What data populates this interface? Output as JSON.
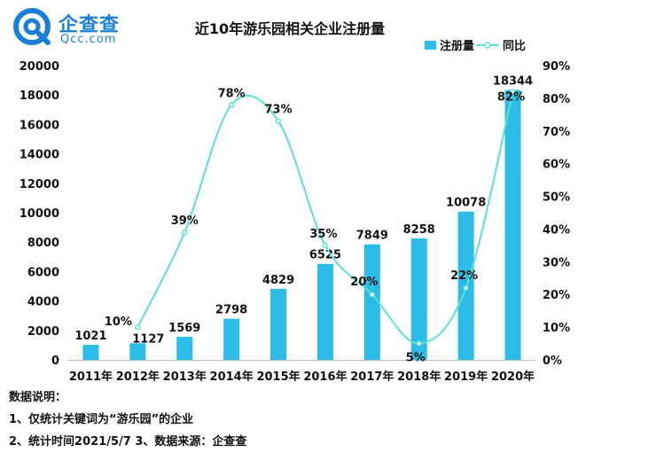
{
  "brand": {
    "name_cn": "企查查",
    "name_en": "Qcc.com",
    "colors": {
      "primary": "#1a7fd6"
    }
  },
  "chart_data": {
    "type": "bar",
    "title": "近10年游乐园相关企业注册量",
    "categories": [
      "2011年",
      "2012年",
      "2013年",
      "2014年",
      "2015年",
      "2016年",
      "2017年",
      "2018年",
      "2019年",
      "2020年"
    ],
    "series": [
      {
        "name": "注册量",
        "type": "bar",
        "axis": "left",
        "color": "#2bbde8",
        "values": [
          1021,
          1127,
          1569,
          2798,
          4829,
          6525,
          7849,
          8258,
          10078,
          18344
        ],
        "labels": [
          "1021",
          "1127",
          "1569",
          "2798",
          "4829",
          "6525",
          "7849",
          "8258",
          "10078",
          "18344"
        ]
      },
      {
        "name": "同比",
        "type": "line",
        "axis": "right",
        "color": "#5ce0cf",
        "values": [
          null,
          10,
          39,
          78,
          73,
          35,
          20,
          5,
          22,
          82
        ],
        "labels": [
          "",
          "10%",
          "39%",
          "78%",
          "73%",
          "35%",
          "20%",
          "5%",
          "22%",
          "82%"
        ]
      }
    ],
    "y_left": {
      "min": 0,
      "max": 20000,
      "ticks": [
        "0",
        "2000",
        "4000",
        "6000",
        "8000",
        "10000",
        "12000",
        "14000",
        "16000",
        "18000",
        "20000"
      ]
    },
    "y_right": {
      "min": 0,
      "max": 90,
      "ticks": [
        "0%",
        "10%",
        "20%",
        "30%",
        "40%",
        "50%",
        "60%",
        "70%",
        "80%",
        "90%"
      ]
    },
    "legend_position": "top-right",
    "grid": false
  },
  "notes": {
    "heading": "数据说明：",
    "line1": "1、仅统计关键词为“游乐园”的企业",
    "line2": "2、统计时间2021/5/7   3、数据来源：企查查"
  }
}
